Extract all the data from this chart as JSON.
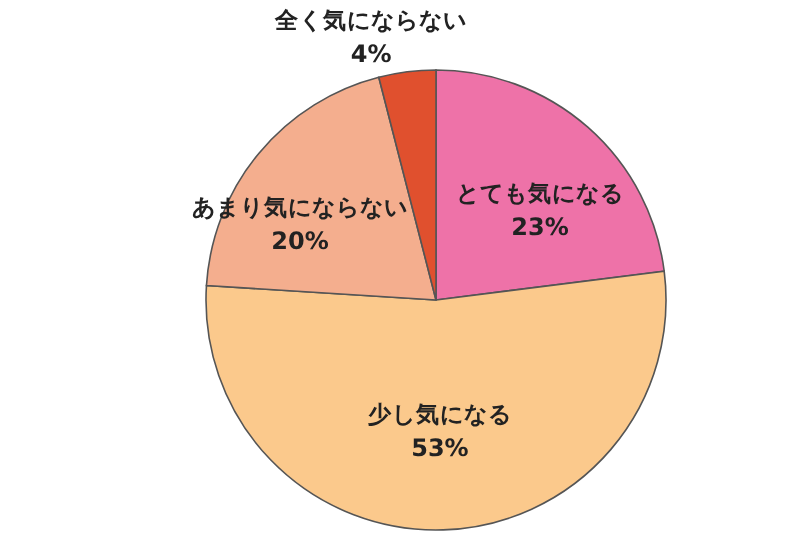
{
  "chart_data": {
    "type": "pie",
    "categories": [
      "とても気になる",
      "少し気になる",
      "あまり気にならない",
      "全く気にならない"
    ],
    "values": [
      23,
      53,
      20,
      4
    ],
    "value_labels": [
      "23%",
      "53%",
      "20%",
      "4%"
    ],
    "colors": [
      "#ee72a8",
      "#fbc98c",
      "#f4ae8e",
      "#e0502e"
    ],
    "legend": false
  }
}
